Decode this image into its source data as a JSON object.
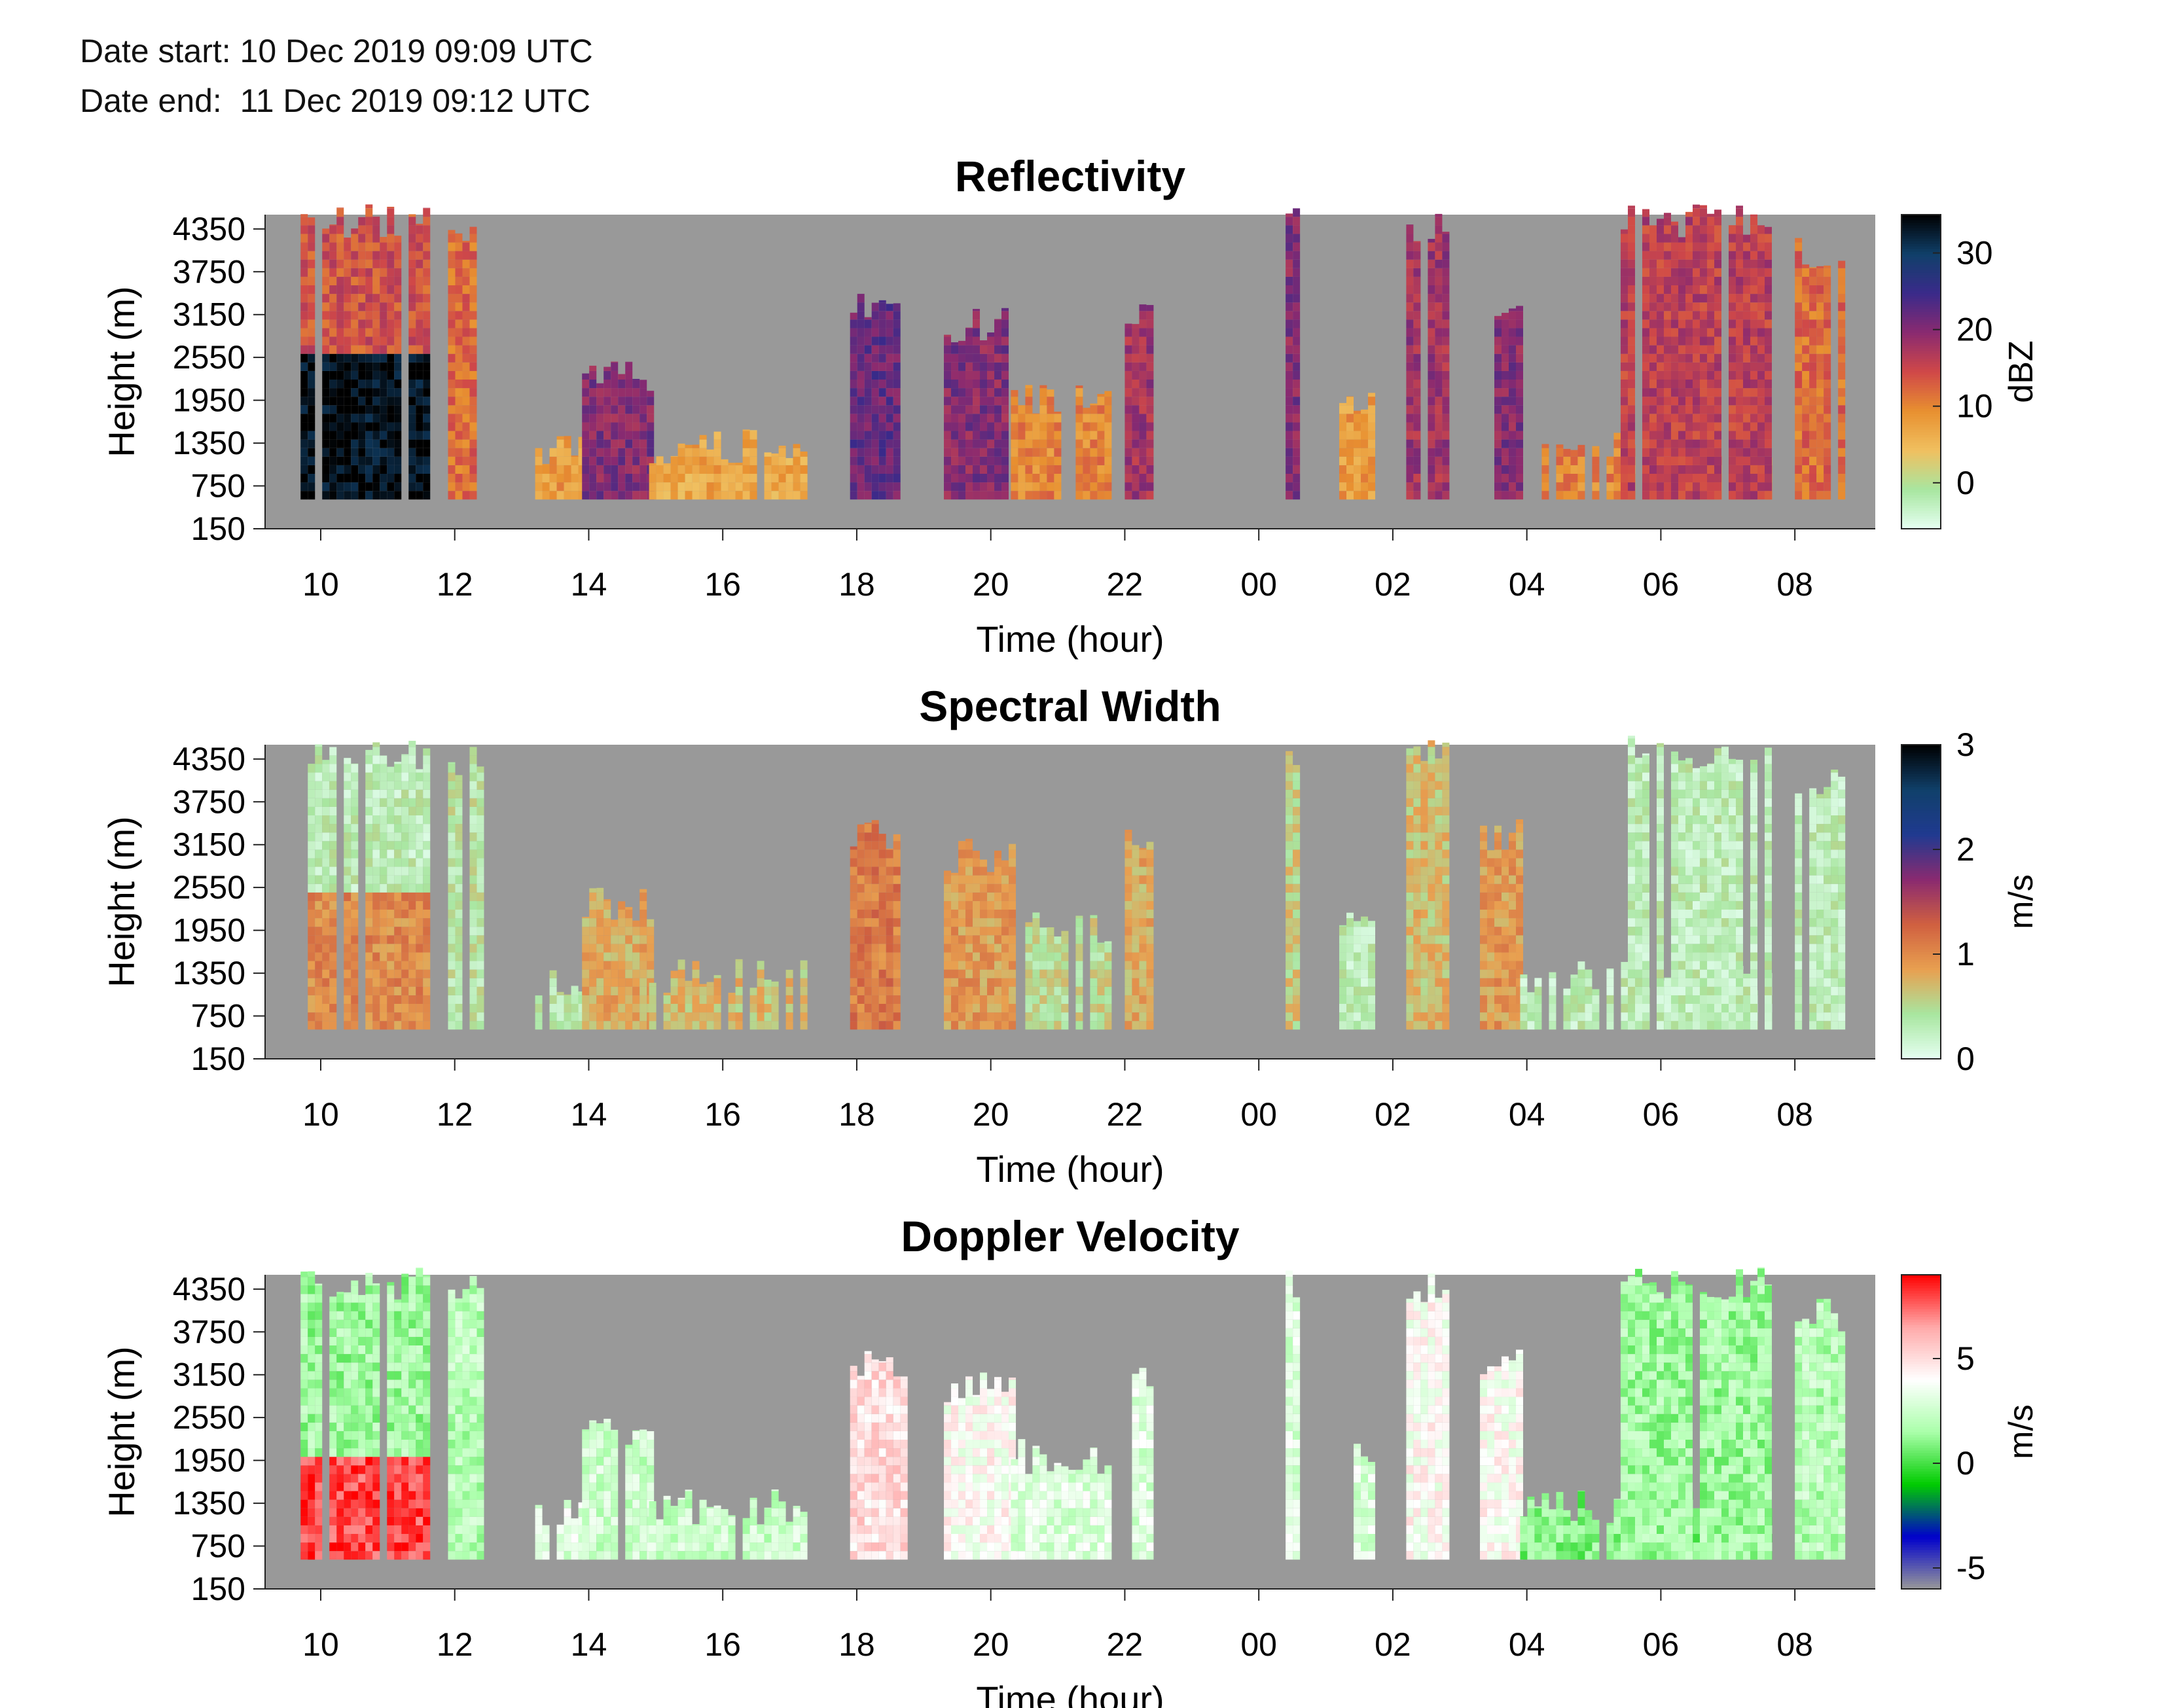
{
  "header": {
    "date_start": "Date start: 10 Dec 2019 09:09 UTC",
    "date_end": "Date end:  11 Dec 2019 09:12 UTC"
  },
  "colors": {
    "background_no_data": "#999999",
    "reflectivity_map": [
      "#e6fff2",
      "#a8e6a0",
      "#f0c060",
      "#e89030",
      "#d04848",
      "#8a2a70",
      "#3a2a8a",
      "#10406a",
      "#000000"
    ],
    "spectral_width_map": [
      "#e6fff2",
      "#a8e6a0",
      "#e8a050",
      "#d06040",
      "#8a2a70",
      "#203a90",
      "#10406a",
      "#000000"
    ],
    "doppler_map": [
      "#999999",
      "#0000cc",
      "#00cc00",
      "#aaffaa",
      "#ffffff",
      "#ffaaaa",
      "#ff0000"
    ]
  },
  "chart_data": [
    {
      "type": "heatmap",
      "title": "Reflectivity",
      "xlabel": "Time (hour)",
      "ylabel": "Height (m)",
      "x_ticks": [
        "10",
        "12",
        "14",
        "16",
        "18",
        "20",
        "22",
        "00",
        "02",
        "04",
        "06",
        "08"
      ],
      "y_ticks": [
        "4350",
        "3750",
        "3150",
        "2550",
        "1950",
        "1350",
        "750",
        "150"
      ],
      "y_tick_values": [
        4350,
        3750,
        3150,
        2550,
        1950,
        1350,
        750,
        150
      ],
      "ylim": [
        150,
        4550
      ],
      "xlim_hours": [
        9.17,
        33.2
      ],
      "colorbar": {
        "label": "dBZ",
        "ticks": [
          "30",
          "20",
          "10",
          "0"
        ],
        "tick_values": [
          30,
          20,
          10,
          0
        ],
        "range": [
          -6,
          35
        ],
        "colormap": "reflectivity_map"
      },
      "events": [
        {
          "start": 9.7,
          "end": 11.6,
          "top": 4450,
          "value": 34,
          "base": 900
        },
        {
          "start": 11.9,
          "end": 12.4,
          "top": 4300,
          "value": 12
        },
        {
          "start": 13.2,
          "end": 13.9,
          "top": 1200,
          "value": 8
        },
        {
          "start": 13.9,
          "end": 14.9,
          "top": 2300,
          "value": 20
        },
        {
          "start": 14.9,
          "end": 17.2,
          "top": 1300,
          "value": 7
        },
        {
          "start": 17.9,
          "end": 18.7,
          "top": 3300,
          "value": 22
        },
        {
          "start": 19.3,
          "end": 20.3,
          "top": 3000,
          "value": 20
        },
        {
          "start": 20.3,
          "end": 21.7,
          "top": 2000,
          "value": 10
        },
        {
          "start": 22.0,
          "end": 22.4,
          "top": 3200,
          "value": 18
        },
        {
          "start": 24.4,
          "end": 24.6,
          "top": 4400,
          "value": 20
        },
        {
          "start": 25.2,
          "end": 25.7,
          "top": 2000,
          "value": 8
        },
        {
          "start": 26.2,
          "end": 26.8,
          "top": 4400,
          "value": 18
        },
        {
          "start": 27.3,
          "end": 27.9,
          "top": 3300,
          "value": 20
        },
        {
          "start": 27.9,
          "end": 31.6,
          "top": 1300,
          "value": 10
        },
        {
          "start": 29.4,
          "end": 31.6,
          "top": 4450,
          "value": 16
        },
        {
          "start": 32.0,
          "end": 32.7,
          "top": 4000,
          "value": 12
        }
      ]
    },
    {
      "type": "heatmap",
      "title": "Spectral Width",
      "xlabel": "Time (hour)",
      "ylabel": "Height (m)",
      "x_ticks": [
        "10",
        "12",
        "14",
        "16",
        "18",
        "20",
        "22",
        "00",
        "02",
        "04",
        "06",
        "08"
      ],
      "y_ticks": [
        "4350",
        "3750",
        "3150",
        "2550",
        "1950",
        "1350",
        "750",
        "150"
      ],
      "y_tick_values": [
        4350,
        3750,
        3150,
        2550,
        1950,
        1350,
        750,
        150
      ],
      "ylim": [
        150,
        4550
      ],
      "xlim_hours": [
        9.17,
        33.2
      ],
      "colorbar": {
        "label": "m/s",
        "ticks": [
          "3",
          "2",
          "1",
          "0"
        ],
        "tick_values": [
          3,
          2,
          1,
          0
        ],
        "range": [
          0,
          3
        ],
        "colormap": "spectral_width_map"
      },
      "events": [
        {
          "start": 9.7,
          "end": 11.6,
          "top": 4450,
          "value": 0.3,
          "low_value": 1.0,
          "split": 2400
        },
        {
          "start": 11.9,
          "end": 12.4,
          "top": 4300,
          "value": 0.4
        },
        {
          "start": 13.2,
          "end": 13.9,
          "top": 1200,
          "value": 0.4
        },
        {
          "start": 13.9,
          "end": 14.9,
          "top": 2300,
          "value": 0.8
        },
        {
          "start": 14.9,
          "end": 17.2,
          "top": 1300,
          "value": 0.7
        },
        {
          "start": 17.9,
          "end": 18.7,
          "top": 3300,
          "value": 1.1
        },
        {
          "start": 19.3,
          "end": 20.3,
          "top": 3000,
          "value": 0.9
        },
        {
          "start": 20.3,
          "end": 21.7,
          "top": 2000,
          "value": 0.5
        },
        {
          "start": 22.0,
          "end": 22.4,
          "top": 3200,
          "value": 0.8
        },
        {
          "start": 24.4,
          "end": 24.6,
          "top": 4400,
          "value": 0.6
        },
        {
          "start": 25.2,
          "end": 25.7,
          "top": 2000,
          "value": 0.3
        },
        {
          "start": 26.2,
          "end": 26.8,
          "top": 4400,
          "value": 0.7
        },
        {
          "start": 27.3,
          "end": 27.9,
          "top": 3300,
          "value": 0.9
        },
        {
          "start": 27.9,
          "end": 31.6,
          "top": 1300,
          "value": 0.3
        },
        {
          "start": 29.4,
          "end": 31.6,
          "top": 4450,
          "value": 0.3
        },
        {
          "start": 32.0,
          "end": 32.7,
          "top": 4000,
          "value": 0.3
        }
      ]
    },
    {
      "type": "heatmap",
      "title": "Doppler Velocity",
      "xlabel": "Time (hour)",
      "ylabel": "Height (m)",
      "x_ticks": [
        "10",
        "12",
        "14",
        "16",
        "18",
        "20",
        "22",
        "00",
        "02",
        "04",
        "06",
        "08"
      ],
      "y_ticks": [
        "4350",
        "3750",
        "3150",
        "2550",
        "1950",
        "1350",
        "750",
        "150"
      ],
      "y_tick_values": [
        4350,
        3750,
        3150,
        2550,
        1950,
        1350,
        750,
        150
      ],
      "ylim": [
        150,
        4550
      ],
      "xlim_hours": [
        9.17,
        33.2
      ],
      "colorbar": {
        "label": "m/s",
        "ticks": [
          "5",
          "0",
          "-5"
        ],
        "tick_values": [
          5,
          0,
          -5
        ],
        "range": [
          -6,
          9
        ],
        "colormap": "doppler_map"
      },
      "events": [
        {
          "start": 9.7,
          "end": 11.6,
          "top": 4450,
          "value": 1.5,
          "low_value": 8,
          "split": 2000
        },
        {
          "start": 11.9,
          "end": 12.4,
          "top": 4300,
          "value": 2
        },
        {
          "start": 13.2,
          "end": 13.9,
          "top": 1200,
          "value": 3
        },
        {
          "start": 13.9,
          "end": 14.9,
          "top": 2300,
          "value": 2.5
        },
        {
          "start": 14.9,
          "end": 17.2,
          "top": 1300,
          "value": 2.5
        },
        {
          "start": 17.9,
          "end": 18.7,
          "top": 3300,
          "value": 5
        },
        {
          "start": 19.3,
          "end": 20.3,
          "top": 3000,
          "value": 4
        },
        {
          "start": 20.3,
          "end": 21.7,
          "top": 2000,
          "value": 3
        },
        {
          "start": 22.0,
          "end": 22.4,
          "top": 3200,
          "value": 3
        },
        {
          "start": 24.4,
          "end": 24.6,
          "top": 4400,
          "value": 3
        },
        {
          "start": 25.2,
          "end": 25.7,
          "top": 2000,
          "value": 3
        },
        {
          "start": 26.2,
          "end": 26.8,
          "top": 4400,
          "value": 4
        },
        {
          "start": 27.3,
          "end": 27.9,
          "top": 3300,
          "value": 4
        },
        {
          "start": 27.9,
          "end": 31.6,
          "top": 1300,
          "value": 1
        },
        {
          "start": 29.4,
          "end": 31.6,
          "top": 4450,
          "value": 1.5
        },
        {
          "start": 32.0,
          "end": 32.7,
          "top": 4000,
          "value": 2
        }
      ]
    }
  ]
}
